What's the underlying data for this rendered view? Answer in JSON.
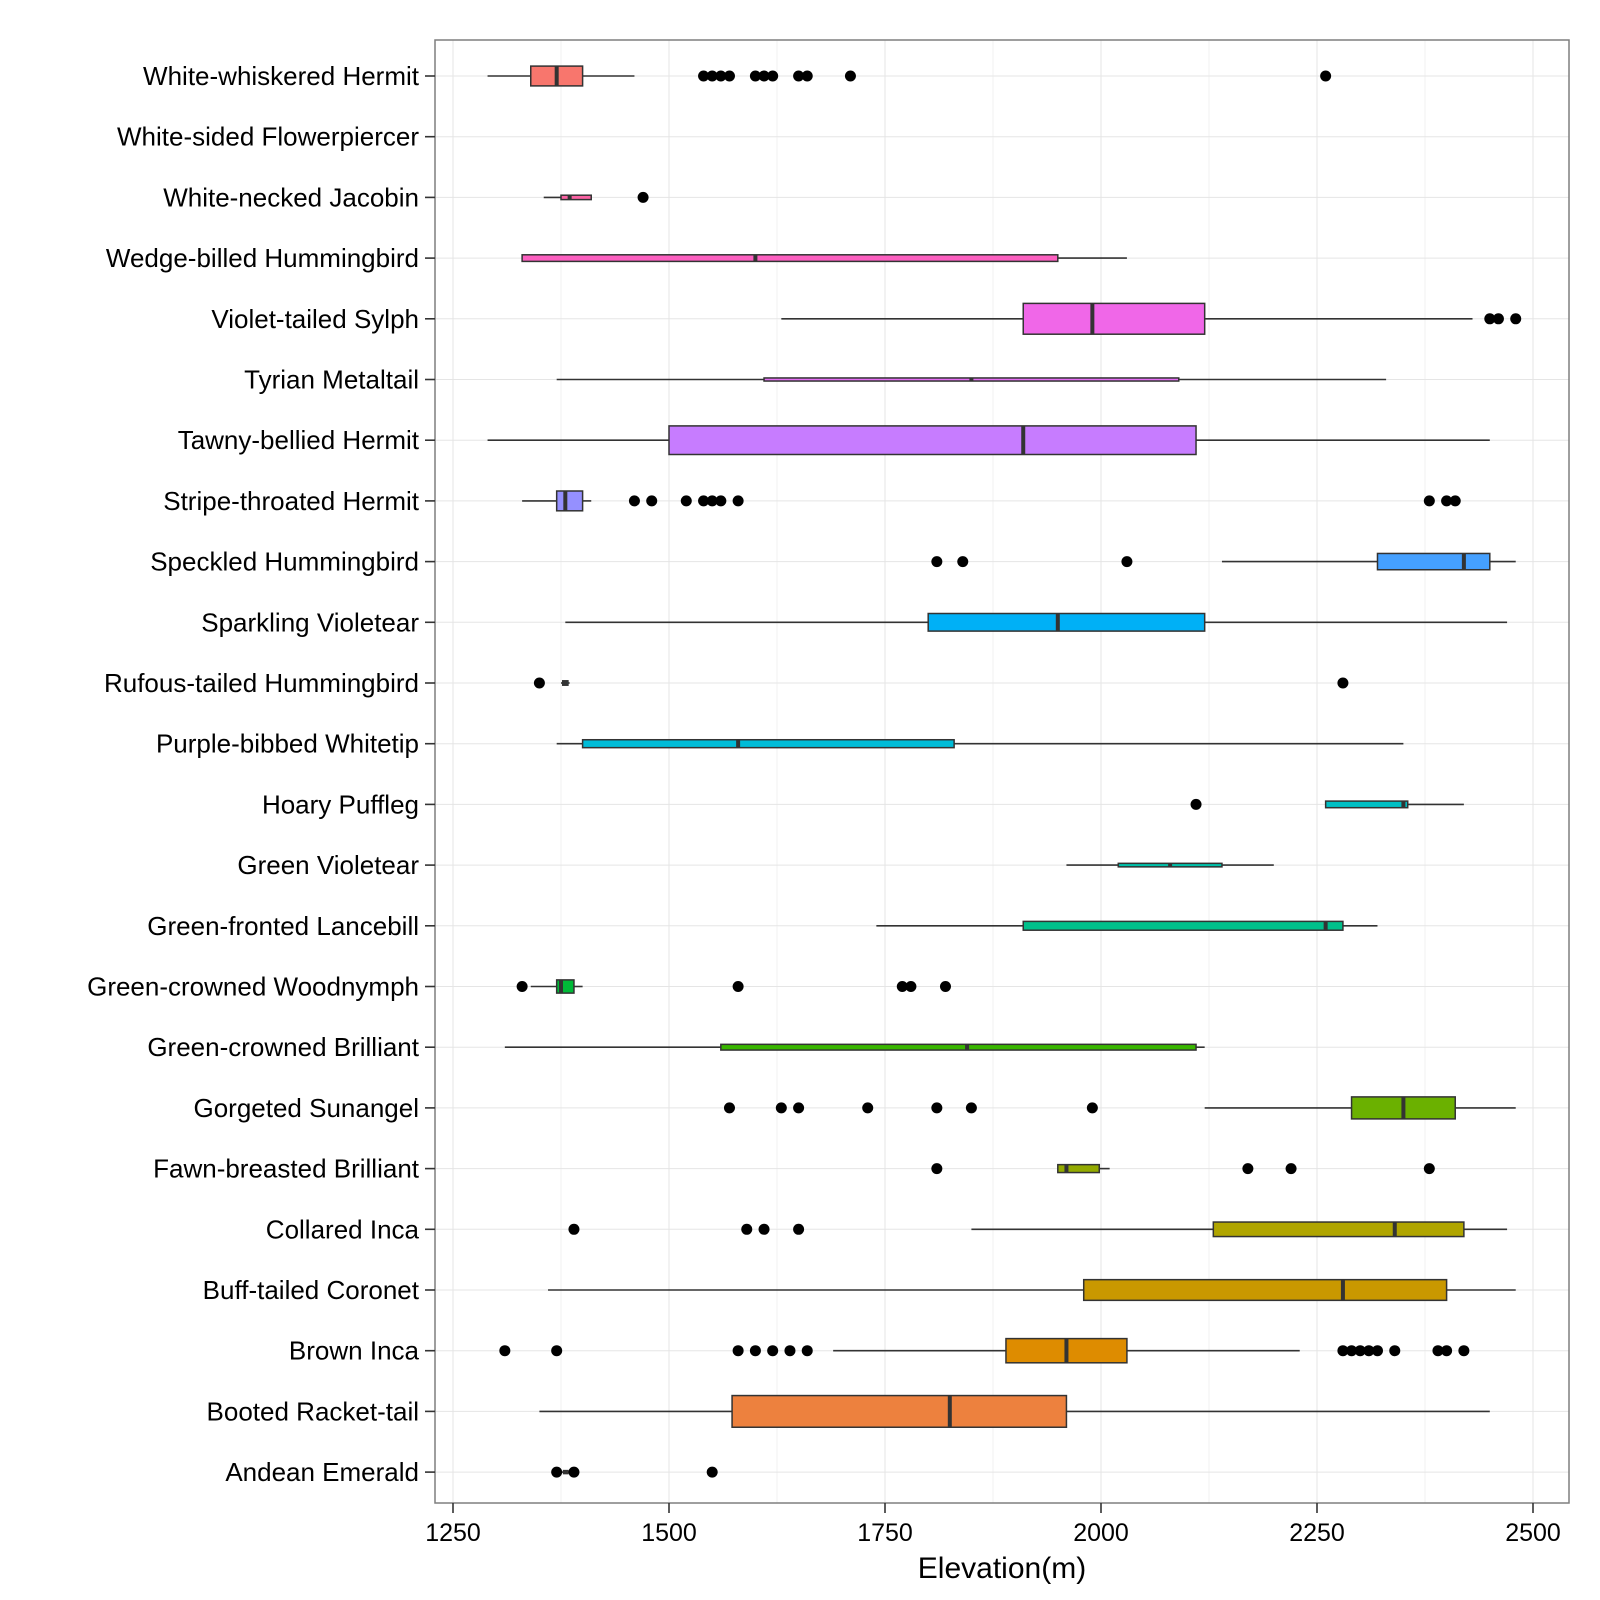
{
  "chart_data": {
    "type": "boxplot",
    "orientation": "horizontal",
    "xlabel": "Elevation(m)",
    "ylabel": "",
    "title": "",
    "xlim": [
      1250,
      2500
    ],
    "x_ticks": [
      1250,
      1500,
      1750,
      2000,
      2250,
      2500
    ],
    "grid": true,
    "legend": "none",
    "categories": [
      "White-whiskered Hermit",
      "White-sided Flowerpiercer",
      "White-necked Jacobin",
      "Wedge-billed Hummingbird",
      "Violet-tailed Sylph",
      "Tyrian Metaltail",
      "Tawny-bellied Hermit",
      "Stripe-throated Hermit",
      "Speckled Hummingbird",
      "Sparkling Violetear",
      "Rufous-tailed Hummingbird",
      "Purple-bibbed Whitetip",
      "Hoary Puffleg",
      "Green Violetear",
      "Green-fronted Lancebill",
      "Green-crowned Woodnymph",
      "Green-crowned Brilliant",
      "Gorgeted Sunangel",
      "Fawn-breasted Brilliant",
      "Collared Inca",
      "Buff-tailed Coronet",
      "Brown Inca",
      "Booted Racket-tail",
      "Andean Emerald"
    ],
    "boxes": [
      {
        "species": "White-whiskered Hermit",
        "color": "#f8766d",
        "whisker_low": 1290,
        "q1": 1340,
        "median": 1370,
        "q3": 1400,
        "whisker_high": 1460,
        "rel_width": 0.45,
        "outliers": [
          1540,
          1550,
          1560,
          1570,
          1600,
          1610,
          1620,
          1650,
          1660,
          1710,
          2260
        ]
      },
      {
        "species": "White-sided Flowerpiercer",
        "color": "#f564e3",
        "whisker_low": null,
        "q1": null,
        "median": null,
        "q3": null,
        "whisker_high": null,
        "rel_width": 0,
        "outliers": []
      },
      {
        "species": "White-necked Jacobin",
        "color": "#fa62a3",
        "whisker_low": 1355,
        "q1": 1375,
        "median": 1385,
        "q3": 1410,
        "whisker_high": 1410,
        "rel_width": 0.1,
        "outliers": [
          1470
        ]
      },
      {
        "species": "Wedge-billed Hummingbird",
        "color": "#fc5fc0",
        "whisker_low": 1330,
        "q1": 1330,
        "median": 1600,
        "q3": 1950,
        "whisker_high": 2030,
        "rel_width": 0.15,
        "outliers": []
      },
      {
        "species": "Violet-tailed Sylph",
        "color": "#f067e8",
        "whisker_low": 1630,
        "q1": 1910,
        "median": 1990,
        "q3": 2120,
        "whisker_high": 2430,
        "rel_width": 0.7,
        "outliers": [
          2450,
          2460,
          2480
        ]
      },
      {
        "species": "Tyrian Metaltail",
        "color": "#e56ef4",
        "whisker_low": 1370,
        "q1": 1610,
        "median": 1850,
        "q3": 2090,
        "whisker_high": 2330,
        "rel_width": 0.07,
        "outliers": []
      },
      {
        "species": "Tawny-bellied Hermit",
        "color": "#c77cff",
        "whisker_low": 1290,
        "q1": 1500,
        "median": 1910,
        "q3": 2110,
        "whisker_high": 2450,
        "rel_width": 0.65,
        "outliers": []
      },
      {
        "species": "Stripe-throated Hermit",
        "color": "#9590ff",
        "whisker_low": 1330,
        "q1": 1370,
        "median": 1380,
        "q3": 1400,
        "whisker_high": 1410,
        "rel_width": 0.45,
        "outliers": [
          1460,
          1480,
          1520,
          1540,
          1550,
          1560,
          1580,
          2380,
          2400,
          2410
        ]
      },
      {
        "species": "Speckled Hummingbird",
        "color": "#45a0ff",
        "whisker_low": 2140,
        "q1": 2320,
        "median": 2420,
        "q3": 2450,
        "whisker_high": 2480,
        "rel_width": 0.37,
        "outliers": [
          1810,
          1840,
          2030
        ]
      },
      {
        "species": "Sparkling Violetear",
        "color": "#00b0f6",
        "whisker_low": 1380,
        "q1": 1800,
        "median": 1950,
        "q3": 2120,
        "whisker_high": 2470,
        "rel_width": 0.4,
        "outliers": []
      },
      {
        "species": "Rufous-tailed Hummingbird",
        "color": "#00a6d6",
        "whisker_low": 1375,
        "q1": 1377,
        "median": 1380,
        "q3": 1383,
        "whisker_high": 1385,
        "rel_width": 0.1,
        "outliers": [
          1350,
          2280
        ]
      },
      {
        "species": "Purple-bibbed Whitetip",
        "color": "#00bcd8",
        "whisker_low": 1370,
        "q1": 1400,
        "median": 1580,
        "q3": 1830,
        "whisker_high": 2350,
        "rel_width": 0.18,
        "outliers": []
      },
      {
        "species": "Hoary Puffleg",
        "color": "#00bfc4",
        "whisker_low": 2260,
        "q1": 2260,
        "median": 2350,
        "q3": 2355,
        "whisker_high": 2420,
        "rel_width": 0.15,
        "outliers": [
          2110
        ]
      },
      {
        "species": "Green Violetear",
        "color": "#00c1aa",
        "whisker_low": 1960,
        "q1": 2020,
        "median": 2080,
        "q3": 2140,
        "whisker_high": 2200,
        "rel_width": 0.08,
        "outliers": []
      },
      {
        "species": "Green-fronted Lancebill",
        "color": "#00c08b",
        "whisker_low": 1740,
        "q1": 1910,
        "median": 2260,
        "q3": 2280,
        "whisker_high": 2320,
        "rel_width": 0.2,
        "outliers": []
      },
      {
        "species": "Green-crowned Woodnymph",
        "color": "#00ba38",
        "whisker_low": 1340,
        "q1": 1370,
        "median": 1375,
        "q3": 1390,
        "whisker_high": 1400,
        "rel_width": 0.3,
        "outliers": [
          1330,
          1580,
          1770,
          1780,
          1820
        ]
      },
      {
        "species": "Green-crowned Brilliant",
        "color": "#39b600",
        "whisker_low": 1310,
        "q1": 1560,
        "median": 1845,
        "q3": 2110,
        "whisker_high": 2120,
        "rel_width": 0.13,
        "outliers": []
      },
      {
        "species": "Gorgeted Sunangel",
        "color": "#6bb100",
        "whisker_low": 2120,
        "q1": 2290,
        "median": 2350,
        "q3": 2410,
        "whisker_high": 2480,
        "rel_width": 0.5,
        "outliers": [
          1570,
          1630,
          1650,
          1730,
          1810,
          1850,
          1990
        ]
      },
      {
        "species": "Fawn-breasted Brilliant",
        "color": "#93aa00",
        "whisker_low": 1950,
        "q1": 1950,
        "median": 1960,
        "q3": 1998,
        "whisker_high": 2010,
        "rel_width": 0.18,
        "outliers": [
          1810,
          2170,
          2220,
          2380
        ]
      },
      {
        "species": "Collared Inca",
        "color": "#b0a500",
        "whisker_low": 1850,
        "q1": 2130,
        "median": 2340,
        "q3": 2420,
        "whisker_high": 2470,
        "rel_width": 0.33,
        "outliers": [
          1390,
          1590,
          1610,
          1650
        ]
      },
      {
        "species": "Buff-tailed Coronet",
        "color": "#c99800",
        "whisker_low": 1360,
        "q1": 1980,
        "median": 2280,
        "q3": 2400,
        "whisker_high": 2480,
        "rel_width": 0.47,
        "outliers": []
      },
      {
        "species": "Brown Inca",
        "color": "#de8c00",
        "whisker_low": 1690,
        "q1": 1890,
        "median": 1960,
        "q3": 2030,
        "whisker_high": 2230,
        "rel_width": 0.55,
        "outliers": [
          1310,
          1370,
          1580,
          1600,
          1620,
          1640,
          1660,
          2280,
          2290,
          2300,
          2310,
          2320,
          2340,
          2390,
          2400,
          2420
        ]
      },
      {
        "species": "Booted Racket-tail",
        "color": "#ed813e",
        "whisker_low": 1350,
        "q1": 1573,
        "median": 1825,
        "q3": 1960,
        "whisker_high": 2450,
        "rel_width": 0.72,
        "outliers": []
      },
      {
        "species": "Andean Emerald",
        "color": "#e88a1f",
        "whisker_low": 1375,
        "q1": 1378,
        "median": 1380,
        "q3": 1383,
        "whisker_high": 1385,
        "rel_width": 0.05,
        "outliers": [
          1370,
          1390,
          1550
        ]
      }
    ]
  }
}
